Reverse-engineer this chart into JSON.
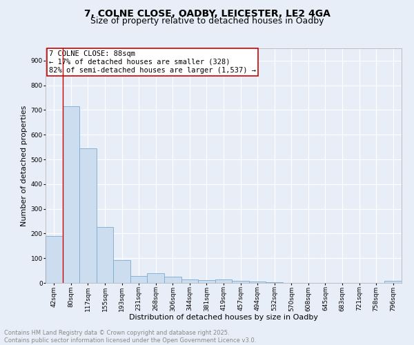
{
  "title_line1": "7, COLNE CLOSE, OADBY, LEICESTER, LE2 4GA",
  "title_line2": "Size of property relative to detached houses in Oadby",
  "xlabel": "Distribution of detached houses by size in Oadby",
  "ylabel": "Number of detached properties",
  "bar_labels": [
    "42sqm",
    "80sqm",
    "117sqm",
    "155sqm",
    "193sqm",
    "231sqm",
    "268sqm",
    "306sqm",
    "344sqm",
    "381sqm",
    "419sqm",
    "457sqm",
    "494sqm",
    "532sqm",
    "570sqm",
    "608sqm",
    "645sqm",
    "683sqm",
    "721sqm",
    "758sqm",
    "796sqm"
  ],
  "bar_values": [
    190,
    716,
    546,
    225,
    91,
    27,
    38,
    25,
    14,
    12,
    13,
    8,
    6,
    3,
    0,
    0,
    0,
    0,
    0,
    0,
    7
  ],
  "bar_color": "#ccddf0",
  "bar_edge_color": "#7aaad0",
  "redline_x": 0.5,
  "annotation_text": "7 COLNE CLOSE: 88sqm\n← 17% of detached houses are smaller (328)\n82% of semi-detached houses are larger (1,537) →",
  "annotation_box_color": "#ffffff",
  "annotation_box_edge_color": "#cc0000",
  "annotation_text_color": "#000000",
  "redline_color": "#cc0000",
  "background_color": "#e8eef8",
  "plot_background": "#e8eef8",
  "grid_color": "#ffffff",
  "ylim": [
    0,
    950
  ],
  "yticks": [
    0,
    100,
    200,
    300,
    400,
    500,
    600,
    700,
    800,
    900
  ],
  "footer_line1": "Contains HM Land Registry data © Crown copyright and database right 2025.",
  "footer_line2": "Contains public sector information licensed under the Open Government Licence v3.0.",
  "footer_color": "#888888",
  "title_fontsize": 10,
  "subtitle_fontsize": 9,
  "axis_label_fontsize": 8,
  "tick_fontsize": 6.5,
  "annotation_fontsize": 7.5,
  "footer_fontsize": 6
}
